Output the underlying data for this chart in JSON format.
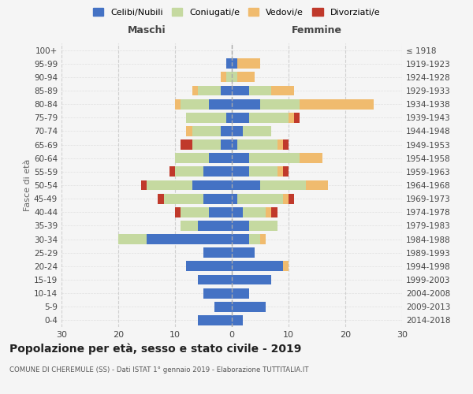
{
  "age_groups": [
    "0-4",
    "5-9",
    "10-14",
    "15-19",
    "20-24",
    "25-29",
    "30-34",
    "35-39",
    "40-44",
    "45-49",
    "50-54",
    "55-59",
    "60-64",
    "65-69",
    "70-74",
    "75-79",
    "80-84",
    "85-89",
    "90-94",
    "95-99",
    "100+"
  ],
  "birth_years": [
    "2014-2018",
    "2009-2013",
    "2004-2008",
    "1999-2003",
    "1994-1998",
    "1989-1993",
    "1984-1988",
    "1979-1983",
    "1974-1978",
    "1969-1973",
    "1964-1968",
    "1959-1963",
    "1954-1958",
    "1949-1953",
    "1944-1948",
    "1939-1943",
    "1934-1938",
    "1929-1933",
    "1924-1928",
    "1919-1923",
    "≤ 1918"
  ],
  "males": {
    "celibe": [
      6,
      3,
      5,
      6,
      8,
      5,
      15,
      6,
      4,
      5,
      7,
      5,
      4,
      2,
      2,
      1,
      4,
      2,
      0,
      1,
      0
    ],
    "coniugato": [
      0,
      0,
      0,
      0,
      0,
      0,
      5,
      3,
      5,
      7,
      8,
      5,
      6,
      5,
      5,
      7,
      5,
      4,
      1,
      0,
      0
    ],
    "vedovo": [
      0,
      0,
      0,
      0,
      0,
      0,
      0,
      0,
      0,
      0,
      0,
      0,
      0,
      0,
      1,
      0,
      1,
      1,
      1,
      0,
      0
    ],
    "divorziato": [
      0,
      0,
      0,
      0,
      0,
      0,
      0,
      0,
      1,
      1,
      1,
      1,
      0,
      2,
      0,
      0,
      0,
      0,
      0,
      0,
      0
    ]
  },
  "females": {
    "nubile": [
      2,
      6,
      3,
      7,
      9,
      4,
      3,
      3,
      2,
      1,
      5,
      3,
      3,
      1,
      2,
      3,
      5,
      3,
      0,
      1,
      0
    ],
    "coniugata": [
      0,
      0,
      0,
      0,
      0,
      0,
      2,
      5,
      4,
      8,
      8,
      5,
      9,
      7,
      5,
      7,
      7,
      4,
      1,
      0,
      0
    ],
    "vedova": [
      0,
      0,
      0,
      0,
      1,
      0,
      1,
      0,
      1,
      1,
      4,
      1,
      4,
      1,
      0,
      1,
      13,
      4,
      3,
      4,
      0
    ],
    "divorziata": [
      0,
      0,
      0,
      0,
      0,
      0,
      0,
      0,
      1,
      1,
      0,
      1,
      0,
      1,
      0,
      1,
      0,
      0,
      0,
      0,
      0
    ]
  },
  "colors": {
    "celibe": "#4472c4",
    "coniugato": "#c5d9a0",
    "vedovo": "#f0bb6e",
    "divorziato": "#c0392b"
  },
  "title": "Popolazione per età, sesso e stato civile - 2019",
  "subtitle": "COMUNE DI CHEREMULE (SS) - Dati ISTAT 1° gennaio 2019 - Elaborazione TUTTITALIA.IT",
  "xlabel_left": "Maschi",
  "xlabel_right": "Femmine",
  "ylabel_left": "Fasce di età",
  "xlim": 30,
  "legend_labels": [
    "Celibi/Nubili",
    "Coniugati/e",
    "Vedovi/e",
    "Divorziati/e"
  ],
  "background_color": "#f5f5f5",
  "grid_color": "#cccccc"
}
